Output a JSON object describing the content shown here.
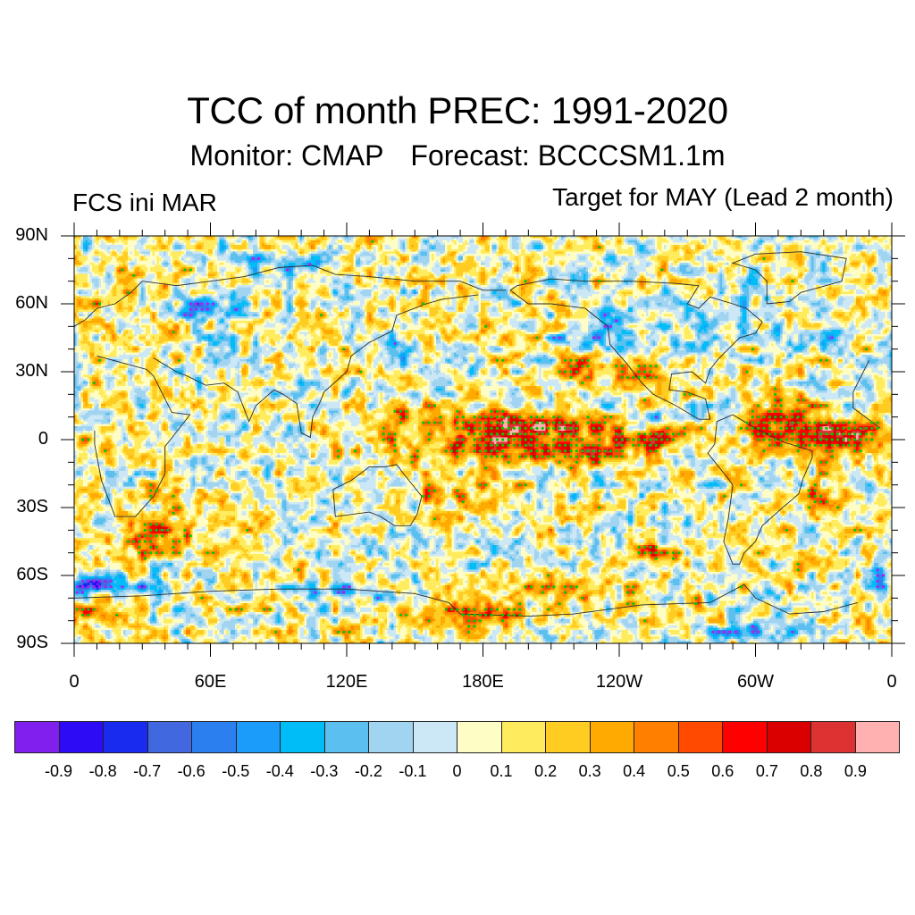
{
  "titles": {
    "main": "TCC of month PREC: 1991-2020",
    "monitor": "Monitor: CMAP",
    "forecast": "Forecast: BCCCSM1.1m",
    "left": "FCS ini MAR",
    "right": "Target for MAY (Lead 2 month)"
  },
  "chart_data": {
    "type": "heatmap",
    "subtype": "global-map-contour-fill",
    "title": "TCC of month PREC: 1991-2020",
    "subtitle": "Monitor: CMAP   Forecast: BCCCSM1.1m",
    "left_annotation": "FCS ini MAR",
    "right_annotation": "Target for MAY (Lead 2 month)",
    "variable": "Temporal correlation coefficient (TCC) of monthly precipitation",
    "x_axis": {
      "range_deg_east": [
        0,
        360
      ],
      "tick_labels": [
        "0",
        "60E",
        "120E",
        "180E",
        "120W",
        "60W",
        "0"
      ],
      "major_tick_values": [
        0,
        60,
        120,
        180,
        240,
        300,
        360
      ],
      "minor_tick_step": 10
    },
    "y_axis": {
      "range_deg": [
        -90,
        90
      ],
      "tick_labels": [
        "90S",
        "60S",
        "30S",
        "0",
        "30N",
        "60N",
        "90N"
      ],
      "major_tick_values": [
        -90,
        -60,
        -30,
        0,
        30,
        60,
        90
      ],
      "minor_tick_step": 10
    },
    "colorbar": {
      "levels": [
        -0.9,
        -0.8,
        -0.7,
        -0.6,
        -0.5,
        -0.4,
        -0.3,
        -0.2,
        -0.1,
        0,
        0.1,
        0.2,
        0.3,
        0.4,
        0.5,
        0.6,
        0.7,
        0.8,
        0.9
      ],
      "level_labels": [
        "-0.9",
        "-0.8",
        "-0.7",
        "-0.6",
        "-0.5",
        "-0.4",
        "-0.3",
        "-0.2",
        "-0.1",
        "0",
        "0.1",
        "0.2",
        "0.3",
        "0.4",
        "0.5",
        "0.6",
        "0.7",
        "0.8",
        "0.9"
      ],
      "colors": [
        "#8020ee",
        "#2d0cf5",
        "#1a2bf0",
        "#4268e0",
        "#2c7fef",
        "#1c9cfa",
        "#00bdf8",
        "#5bc0ef",
        "#a0d4f0",
        "#cce7f6",
        "#fffdc6",
        "#ffec5e",
        "#ffcc22",
        "#ffaa00",
        "#ff8000",
        "#ff4a00",
        "#ff0000",
        "#da0000",
        "#dc3232",
        "#ffb0b0"
      ],
      "orientation": "horizontal",
      "placement": "bottom"
    },
    "significance_markers": {
      "positive": {
        "color": "#00cc00",
        "meaning": "significant positive correlation"
      },
      "negative": {
        "color": "#b020f0",
        "meaning": "significant negative correlation"
      }
    },
    "notable_features": [
      {
        "region": "Equatorial central-eastern Pacific (160E-80W, 10S-15N)",
        "tcc_range": [
          0.6,
          0.8
        ]
      },
      {
        "region": "Equatorial Atlantic / northern South America",
        "tcc_range": [
          0.5,
          0.7
        ]
      },
      {
        "region": "Maritime Continent / tropical western Pacific",
        "tcc_range": [
          0.3,
          0.6
        ]
      },
      {
        "region": "Ross Sea / Antarctic coast near 180E",
        "tcc_range": [
          0.4,
          0.6
        ]
      },
      {
        "region": "Southern Ocean near 0-20E, 55-65S",
        "tcc_range": [
          -0.6,
          -0.4
        ]
      },
      {
        "region": "Southern Ocean south of 70S, 30-60W",
        "tcc_range": [
          -0.5,
          -0.3
        ]
      },
      {
        "region": "Eastern Pacific off Central America 5-10N",
        "tcc_range": [
          -0.5,
          -0.3
        ]
      },
      {
        "region": "Western Siberia 50-60N",
        "tcc_range": [
          -0.5,
          -0.3
        ]
      }
    ]
  }
}
